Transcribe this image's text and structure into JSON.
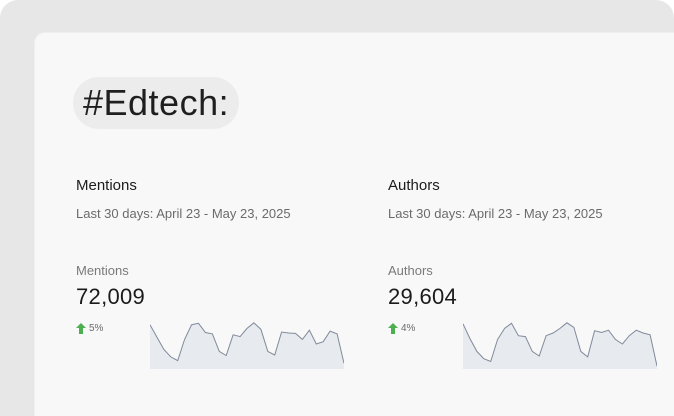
{
  "tag": {
    "label": "#Edtech:"
  },
  "metrics": [
    {
      "title": "Mentions",
      "date_range": "Last 30 days: April 23 - May 23, 2025",
      "metric_label": "Mentions",
      "value": "72,009",
      "change": "5%",
      "trend": [
        0.92,
        0.65,
        0.38,
        0.22,
        0.14,
        0.6,
        0.92,
        0.95,
        0.75,
        0.72,
        0.34,
        0.25,
        0.7,
        0.66,
        0.84,
        0.96,
        0.82,
        0.34,
        0.26,
        0.76,
        0.74,
        0.73,
        0.6,
        0.8,
        0.5,
        0.55,
        0.78,
        0.72,
        0.08
      ]
    },
    {
      "title": "Authors",
      "date_range": "Last 30 days: April 23 - May 23, 2025",
      "metric_label": "Authors",
      "value": "29,604",
      "change": "4%",
      "trend": [
        0.94,
        0.62,
        0.34,
        0.18,
        0.12,
        0.6,
        0.84,
        0.95,
        0.68,
        0.66,
        0.34,
        0.24,
        0.68,
        0.74,
        0.84,
        0.96,
        0.86,
        0.34,
        0.22,
        0.79,
        0.75,
        0.8,
        0.6,
        0.5,
        0.68,
        0.8,
        0.74,
        0.7,
        0.02
      ]
    }
  ],
  "colors": {
    "up_arrow": "#4caf50",
    "sparkline_stroke": "#7f8a9a",
    "sparkline_fill": "#e7eaef"
  }
}
